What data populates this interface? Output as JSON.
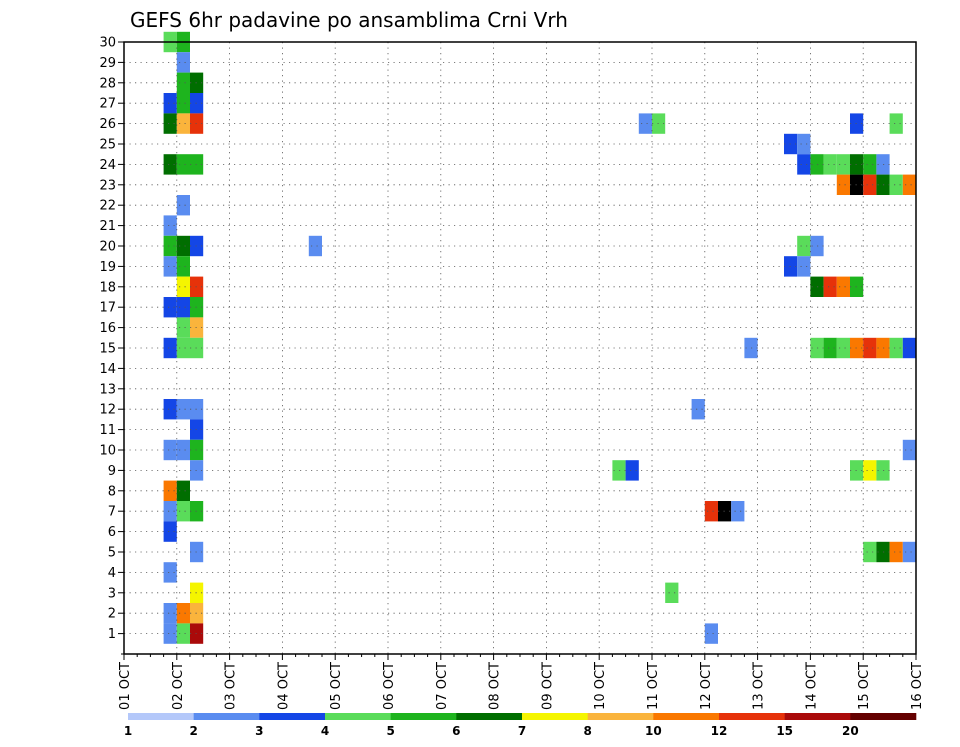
{
  "chart_data": {
    "type": "heatmap",
    "title": "GEFS 6hr padavine po ansamblima Crni Vrh",
    "xlabel": "",
    "ylabel": "",
    "x_ticks": [
      "01 OCT",
      "02 OCT",
      "03 OCT",
      "04 OCT",
      "05 OCT",
      "06 OCT",
      "07 OCT",
      "08 OCT",
      "09 OCT",
      "10 OCT",
      "11 OCT",
      "12 OCT",
      "13 OCT",
      "14 OCT",
      "15 OCT",
      "16 OCT"
    ],
    "xlim_days": [
      0,
      15
    ],
    "steps_per_day": 4,
    "y_ticks": [
      1,
      2,
      3,
      4,
      5,
      6,
      7,
      8,
      9,
      10,
      11,
      12,
      13,
      14,
      15,
      16,
      17,
      18,
      19,
      20,
      21,
      22,
      23,
      24,
      25,
      26,
      27,
      28,
      29,
      30
    ],
    "ylim": [
      0,
      30
    ],
    "grid": true,
    "colorbar": {
      "placement": "bottom",
      "labels": [
        "1",
        "2",
        "3",
        "4",
        "5",
        "6",
        "7",
        "8",
        "10",
        "12",
        "15",
        "20"
      ],
      "colors": [
        "#b4c8fa",
        "#5a8cf0",
        "#1446e6",
        "#5adc5a",
        "#1eb41e",
        "#006e00",
        "#f5f500",
        "#fab43c",
        "#fa7800",
        "#e6320a",
        "#aa0a0a",
        "#640000"
      ]
    },
    "cells": [
      [
        30,
        0.75,
        3
      ],
      [
        30,
        1.0,
        4
      ],
      [
        29,
        1.0,
        1
      ],
      [
        28,
        1.0,
        4
      ],
      [
        28,
        1.25,
        5
      ],
      [
        27,
        0.75,
        2
      ],
      [
        27,
        1.0,
        4
      ],
      [
        27,
        1.25,
        2
      ],
      [
        26,
        0.75,
        5
      ],
      [
        26,
        1.0,
        7
      ],
      [
        26,
        1.25,
        9
      ],
      [
        26,
        9.75,
        1
      ],
      [
        26,
        10.0,
        3
      ],
      [
        26,
        13.75,
        2
      ],
      [
        26,
        14.5,
        3
      ],
      [
        25,
        12.5,
        2
      ],
      [
        25,
        12.75,
        1
      ],
      [
        24,
        0.75,
        5
      ],
      [
        24,
        1.0,
        4
      ],
      [
        24,
        1.25,
        4
      ],
      [
        24,
        12.75,
        2
      ],
      [
        24,
        13.0,
        4
      ],
      [
        24,
        13.25,
        3
      ],
      [
        24,
        13.5,
        3
      ],
      [
        24,
        13.75,
        5
      ],
      [
        24,
        14.0,
        4
      ],
      [
        24,
        14.25,
        1
      ],
      [
        23,
        13.5,
        8
      ],
      [
        23,
        13.75,
        12
      ],
      [
        23,
        14.0,
        9
      ],
      [
        23,
        14.25,
        5
      ],
      [
        23,
        14.5,
        3
      ],
      [
        23,
        14.75,
        8
      ],
      [
        22,
        1.0,
        1
      ],
      [
        21,
        0.75,
        1
      ],
      [
        20,
        0.75,
        4
      ],
      [
        20,
        1.0,
        5
      ],
      [
        20,
        1.25,
        2
      ],
      [
        20,
        3.5,
        1
      ],
      [
        20,
        12.75,
        3
      ],
      [
        20,
        13.0,
        1
      ],
      [
        19,
        0.75,
        1
      ],
      [
        19,
        1.0,
        4
      ],
      [
        19,
        12.5,
        2
      ],
      [
        19,
        12.75,
        1
      ],
      [
        18,
        1.0,
        6
      ],
      [
        18,
        1.25,
        9
      ],
      [
        18,
        13.0,
        5
      ],
      [
        18,
        13.25,
        9
      ],
      [
        18,
        13.5,
        8
      ],
      [
        18,
        13.75,
        4
      ],
      [
        17,
        0.75,
        2
      ],
      [
        17,
        1.0,
        2
      ],
      [
        17,
        1.25,
        4
      ],
      [
        16,
        1.0,
        3
      ],
      [
        16,
        1.25,
        7
      ],
      [
        15,
        0.75,
        2
      ],
      [
        15,
        1.0,
        3
      ],
      [
        15,
        1.25,
        3
      ],
      [
        15,
        11.75,
        1
      ],
      [
        15,
        13.0,
        3
      ],
      [
        15,
        13.25,
        4
      ],
      [
        15,
        13.5,
        3
      ],
      [
        15,
        13.75,
        8
      ],
      [
        15,
        14.0,
        9
      ],
      [
        15,
        14.25,
        8
      ],
      [
        15,
        14.5,
        3
      ],
      [
        15,
        14.75,
        2
      ],
      [
        12,
        0.75,
        2
      ],
      [
        12,
        1.0,
        1
      ],
      [
        12,
        1.25,
        1
      ],
      [
        12,
        10.75,
        1
      ],
      [
        11,
        1.25,
        2
      ],
      [
        10,
        0.75,
        1
      ],
      [
        10,
        1.0,
        1
      ],
      [
        10,
        1.25,
        4
      ],
      [
        10,
        14.75,
        1
      ],
      [
        9,
        1.25,
        1
      ],
      [
        9,
        9.25,
        3
      ],
      [
        9,
        9.5,
        2
      ],
      [
        9,
        13.75,
        3
      ],
      [
        9,
        14.0,
        6
      ],
      [
        9,
        14.25,
        3
      ],
      [
        8,
        0.75,
        8
      ],
      [
        8,
        1.0,
        5
      ],
      [
        7,
        0.75,
        1
      ],
      [
        7,
        1.0,
        3
      ],
      [
        7,
        1.25,
        4
      ],
      [
        7,
        11.0,
        9
      ],
      [
        7,
        11.25,
        12
      ],
      [
        7,
        11.5,
        1
      ],
      [
        6,
        0.75,
        2
      ],
      [
        5,
        1.25,
        1
      ],
      [
        5,
        14.0,
        3
      ],
      [
        5,
        14.25,
        5
      ],
      [
        5,
        14.5,
        8
      ],
      [
        5,
        14.75,
        1
      ],
      [
        4,
        0.75,
        1
      ],
      [
        3,
        1.25,
        6
      ],
      [
        3,
        10.25,
        3
      ],
      [
        2,
        0.75,
        1
      ],
      [
        2,
        1.0,
        8
      ],
      [
        2,
        1.25,
        7
      ],
      [
        1,
        0.75,
        1
      ],
      [
        1,
        1.0,
        3
      ],
      [
        1,
        1.25,
        10
      ],
      [
        1,
        11.0,
        1
      ]
    ]
  }
}
